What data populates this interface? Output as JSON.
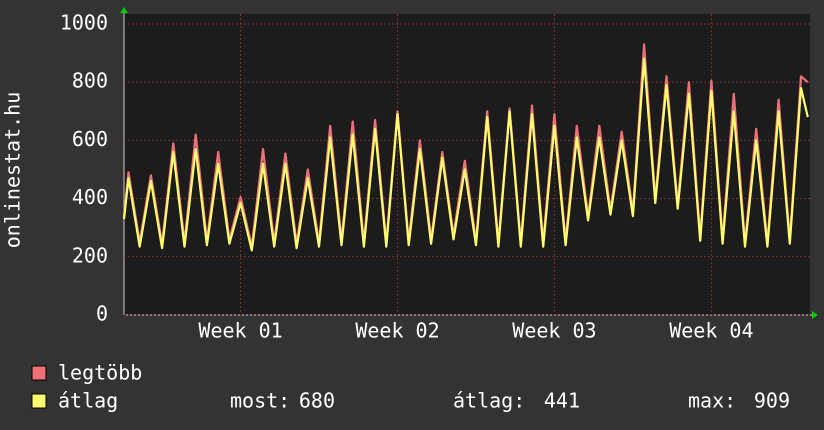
{
  "chart_data": {
    "type": "line",
    "y_label": "onlinestat.hu",
    "xlim": [
      0,
      30.6
    ],
    "xticks": [
      {
        "value": 5.2,
        "label": "Week 01"
      },
      {
        "value": 12.2,
        "label": "Week 02"
      },
      {
        "value": 19.2,
        "label": "Week 03"
      },
      {
        "value": 26.2,
        "label": "Week 04"
      }
    ],
    "ylim": [
      0,
      1000
    ],
    "yticks": [
      0,
      200,
      400,
      600,
      800,
      1000
    ],
    "grid": true,
    "x": [
      0,
      0.2,
      0.7,
      1.2,
      1.7,
      2.2,
      2.7,
      3.2,
      3.7,
      4.2,
      4.7,
      5.2,
      5.7,
      6.2,
      6.7,
      7.2,
      7.7,
      8.2,
      8.7,
      9.2,
      9.7,
      10.2,
      10.7,
      11.2,
      11.7,
      12.2,
      12.7,
      13.2,
      13.7,
      14.2,
      14.7,
      15.2,
      15.7,
      16.2,
      16.7,
      17.2,
      17.7,
      18.2,
      18.7,
      19.2,
      19.7,
      20.2,
      20.7,
      21.2,
      21.7,
      22.2,
      22.7,
      23.2,
      23.7,
      24.2,
      24.7,
      25.2,
      25.7,
      26.2,
      26.7,
      27.2,
      27.7,
      28.2,
      28.7,
      29.2,
      29.7,
      30.2,
      30.5
    ],
    "series": [
      {
        "name": "legtöbb",
        "color": "#f07078",
        "values": [
          340,
          490,
          250,
          480,
          245,
          590,
          250,
          620,
          255,
          560,
          260,
          405,
          235,
          570,
          250,
          555,
          245,
          500,
          250,
          650,
          255,
          665,
          250,
          670,
          250,
          700,
          255,
          600,
          260,
          560,
          275,
          530,
          255,
          700,
          250,
          710,
          250,
          720,
          250,
          690,
          255,
          650,
          340,
          650,
          360,
          630,
          355,
          930,
          400,
          820,
          380,
          800,
          270,
          805,
          260,
          760,
          250,
          640,
          250,
          740,
          260,
          820,
          800
        ]
      },
      {
        "name": "átlag",
        "color": "#ffff70",
        "values": [
          330,
          470,
          235,
          460,
          230,
          560,
          235,
          570,
          240,
          520,
          245,
          385,
          222,
          520,
          235,
          520,
          230,
          470,
          235,
          610,
          240,
          620,
          235,
          640,
          235,
          690,
          240,
          570,
          245,
          540,
          260,
          500,
          240,
          680,
          235,
          700,
          235,
          690,
          235,
          650,
          240,
          610,
          325,
          610,
          345,
          600,
          340,
          880,
          385,
          790,
          365,
          760,
          255,
          770,
          245,
          700,
          235,
          600,
          235,
          700,
          245,
          780,
          680
        ]
      }
    ],
    "stats": [
      {
        "label": "most:",
        "value": 680
      },
      {
        "label": "átlag:",
        "value": 441
      },
      {
        "label": "max:",
        "value": 909
      }
    ]
  }
}
